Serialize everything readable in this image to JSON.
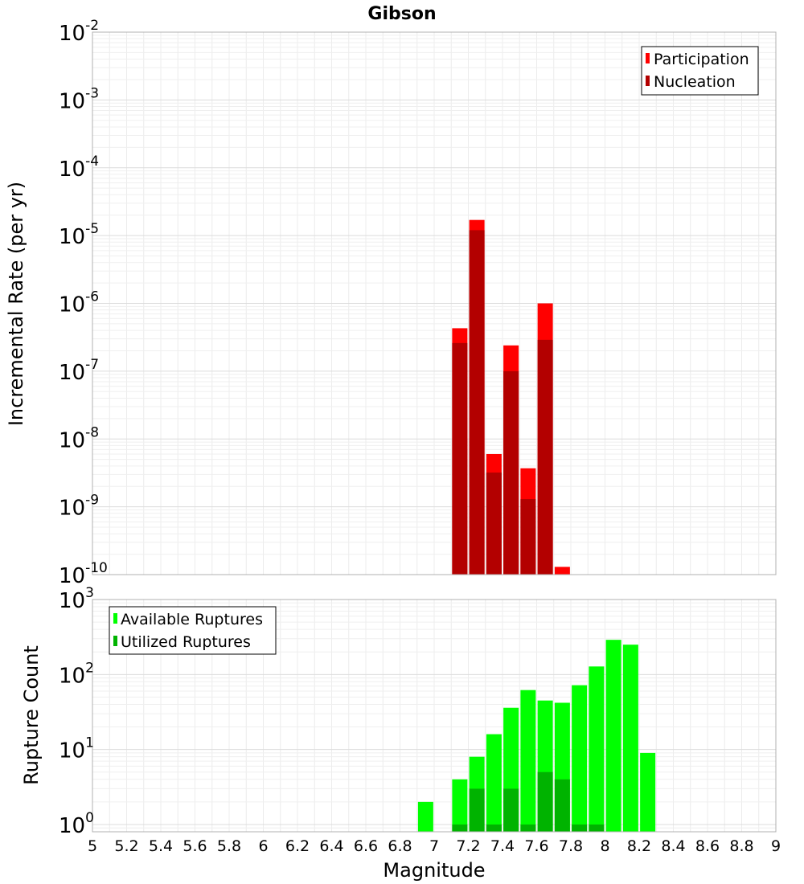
{
  "chart_data": [
    {
      "type": "bar",
      "title": "Gibson",
      "xlabel": "",
      "ylabel": "Incremental Rate (per yr)",
      "yscale": "log",
      "ylim": [
        1e-10,
        0.01
      ],
      "xlim": [
        5,
        9
      ],
      "grid": true,
      "legend_position": "top-right",
      "x": [
        7.15,
        7.25,
        7.35,
        7.45,
        7.55,
        7.65,
        7.75
      ],
      "series": [
        {
          "name": "Participation",
          "color": "#ff0000",
          "values": [
            4.3e-07,
            1.7e-05,
            6e-09,
            2.4e-07,
            3.7e-09,
            1e-06,
            1.3e-10
          ]
        },
        {
          "name": "Nucleation",
          "color": "#b30000",
          "values": [
            2.6e-07,
            1.2e-05,
            3.2e-09,
            1e-07,
            1.3e-09,
            2.9e-07,
            null
          ]
        }
      ],
      "yticks": [
        {
          "base": "10",
          "exp": "-2"
        },
        {
          "base": "10",
          "exp": "-3"
        },
        {
          "base": "10",
          "exp": "-4"
        },
        {
          "base": "10",
          "exp": "-5"
        },
        {
          "base": "10",
          "exp": "-6"
        },
        {
          "base": "10",
          "exp": "-7"
        },
        {
          "base": "10",
          "exp": "-8"
        },
        {
          "base": "10",
          "exp": "-9"
        },
        {
          "base": "10",
          "exp": "-10"
        }
      ]
    },
    {
      "type": "bar",
      "title": "",
      "xlabel": "Magnitude",
      "ylabel": "Rupture Count",
      "yscale": "log",
      "ylim": [
        0.8,
        1000
      ],
      "xlim": [
        5,
        9
      ],
      "grid": true,
      "legend_position": "top-left",
      "x": [
        6.95,
        7.15,
        7.25,
        7.35,
        7.45,
        7.55,
        7.65,
        7.75,
        7.85,
        7.95,
        8.05,
        8.15,
        8.25
      ],
      "series": [
        {
          "name": "Available Ruptures",
          "color": "#00ff00",
          "values": [
            2,
            4,
            8,
            16,
            36,
            62,
            45,
            42,
            72,
            128,
            290,
            250,
            9
          ]
        },
        {
          "name": "Utilized Ruptures",
          "color": "#00b300",
          "values": [
            null,
            1,
            3,
            1,
            3,
            1,
            5,
            4,
            1,
            1,
            null,
            null,
            null
          ]
        }
      ],
      "yticks": [
        {
          "base": "10",
          "exp": "3"
        },
        {
          "base": "10",
          "exp": "2"
        },
        {
          "base": "10",
          "exp": "1"
        },
        {
          "base": "10",
          "exp": "0"
        }
      ],
      "xticks": [
        "5",
        "5.2",
        "5.4",
        "5.6",
        "5.8",
        "6",
        "6.2",
        "6.4",
        "6.6",
        "6.8",
        "7",
        "7.2",
        "7.4",
        "7.6",
        "7.8",
        "8",
        "8.2",
        "8.4",
        "8.6",
        "8.8",
        "9"
      ]
    }
  ]
}
